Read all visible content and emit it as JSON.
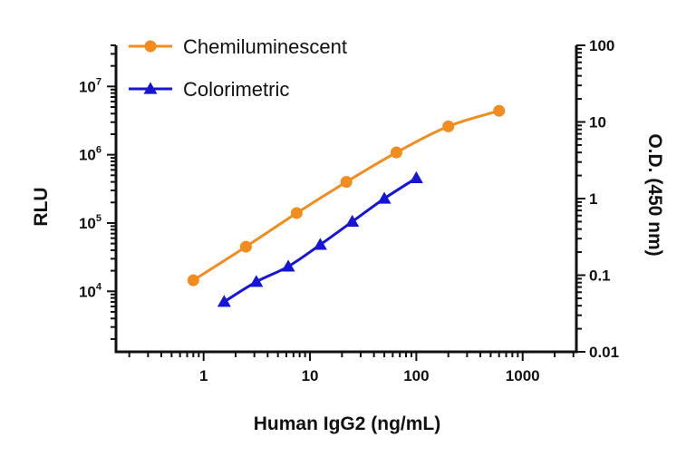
{
  "chart_data": {
    "type": "line",
    "xlabel": "Human IgG2 (ng/mL)",
    "ylabel_left": "RLU",
    "ylabel_right": "O.D. (450 nm)",
    "x_scale": "log",
    "y_left_scale": "log",
    "y_right_scale": "log",
    "xlim": [
      0.15,
      3200
    ],
    "ylim_left": [
      1300,
      40000000
    ],
    "ylim_right": [
      0.01,
      100
    ],
    "x_ticks": [
      {
        "value": 1,
        "label": "1"
      },
      {
        "value": 10,
        "label": "10"
      },
      {
        "value": 100,
        "label": "100"
      },
      {
        "value": 1000,
        "label": "1000"
      }
    ],
    "y_left_ticks": [
      {
        "value": 10000,
        "base": "10",
        "exp": "4"
      },
      {
        "value": 100000,
        "base": "10",
        "exp": "5"
      },
      {
        "value": 1000000,
        "base": "10",
        "exp": "6"
      },
      {
        "value": 10000000,
        "base": "10",
        "exp": "7"
      }
    ],
    "y_right_ticks": [
      {
        "value": 0.01,
        "label": "0.01"
      },
      {
        "value": 0.1,
        "label": "0.1"
      },
      {
        "value": 1,
        "label": "1"
      },
      {
        "value": 10,
        "label": "10"
      },
      {
        "value": 100,
        "label": "100"
      }
    ],
    "legend_position": "top-left",
    "grid": false,
    "series": [
      {
        "name": "Chemiluminescent",
        "axis": "left",
        "color": "#F28C1E",
        "marker": "circle",
        "x": [
          0.8,
          2.5,
          7.5,
          22,
          65,
          200,
          600
        ],
        "y": [
          14500,
          45000,
          140000,
          400000,
          1080000,
          2600000,
          4400000
        ]
      },
      {
        "name": "Colorimetric",
        "axis": "right",
        "color": "#1515D8",
        "marker": "triangle",
        "x": [
          1.56,
          3.13,
          6.25,
          12.5,
          25,
          50,
          100
        ],
        "y": [
          0.045,
          0.082,
          0.13,
          0.25,
          0.5,
          1.0,
          1.85
        ]
      }
    ]
  }
}
